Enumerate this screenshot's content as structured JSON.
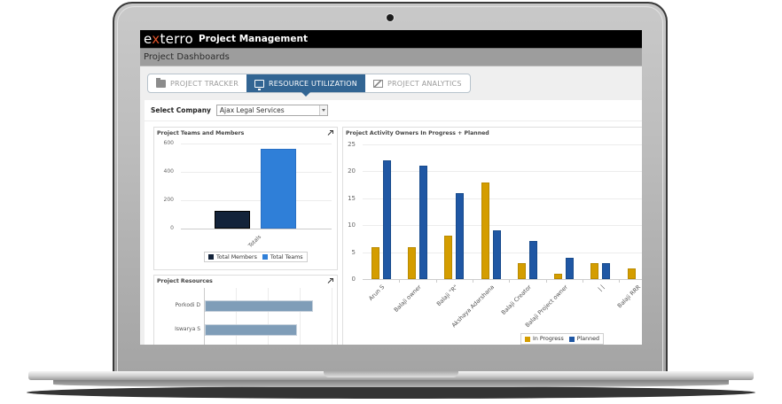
{
  "app": {
    "logo": {
      "prefix": "e",
      "x": "x",
      "suffix": "terro"
    },
    "title": "Project Management",
    "breadcrumb": "Project Dashboards"
  },
  "tabs": [
    {
      "label": "PROJECT TRACKER",
      "icon": "folder-icon",
      "active": false
    },
    {
      "label": "RESOURCE UTILIZATION",
      "icon": "monitor-icon",
      "active": true
    },
    {
      "label": "PROJECT ANALYTICS",
      "icon": "analytics-icon",
      "active": false
    }
  ],
  "filter": {
    "label": "Select Company",
    "value": "Ajax Legal Services"
  },
  "colors": {
    "members": "#13233a",
    "teams": "#2f7fd8",
    "in_progress": "#d49d00",
    "planned": "#1f57a4",
    "resources": "#7f9db8",
    "active_tab": "#326593"
  },
  "chart_data": [
    {
      "type": "bar",
      "title": "Project Teams and Members",
      "categories": [
        "Totals"
      ],
      "series": [
        {
          "name": "Total Members",
          "values": [
            125
          ]
        },
        {
          "name": "Total Teams",
          "values": [
            563
          ]
        }
      ],
      "yticks": [
        "600",
        "400",
        "200",
        "0"
      ],
      "ylim": [
        0,
        600
      ],
      "grid": true,
      "legend_position": "bottom"
    },
    {
      "type": "bar",
      "orientation": "horizontal",
      "title": "Project Resources",
      "categories": [
        "Porkodi D",
        "Iswarya S"
      ],
      "values": [
        100,
        85
      ],
      "grid": true
    },
    {
      "type": "bar",
      "title": "Project Activity Owners In Progress + Planned",
      "categories": [
        "Arun S",
        "Balaji owner",
        "Balaji \"R\"",
        "Akshaya Adarshana",
        "Balaji Creator",
        "Balaji Project owner",
        "| |",
        "Balaji RRR"
      ],
      "series": [
        {
          "name": "In Progress",
          "values": [
            6,
            6,
            8,
            18,
            3,
            1,
            3,
            2
          ]
        },
        {
          "name": "Planned",
          "values": [
            22,
            21,
            16,
            9,
            7,
            4,
            3,
            null
          ]
        }
      ],
      "yticks": [
        "25",
        "20",
        "15",
        "10",
        "5",
        "0"
      ],
      "ylim": [
        0,
        25
      ],
      "grid": true,
      "legend_position": "bottom"
    }
  ]
}
